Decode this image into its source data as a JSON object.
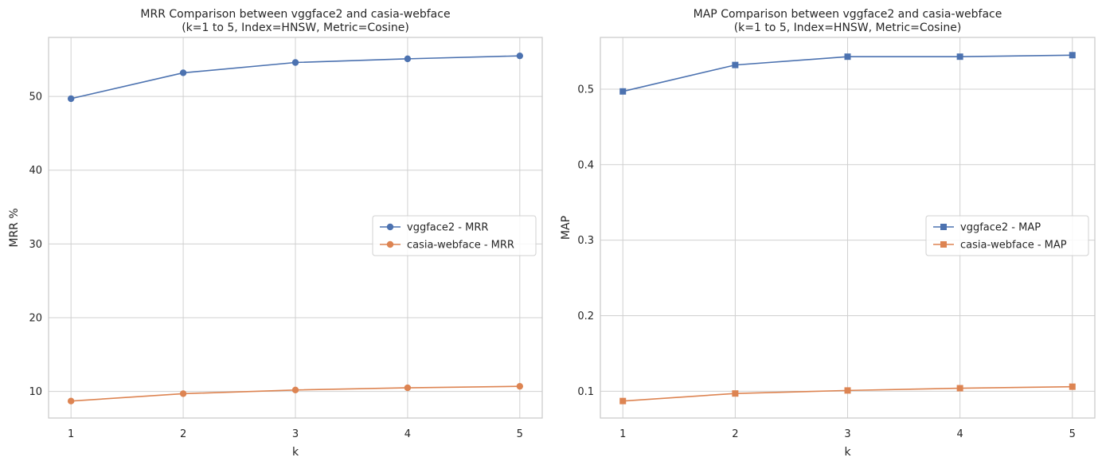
{
  "chart_data": [
    {
      "type": "line",
      "title": "MRR Comparison between vggface2 and casia-webface\n(k=1 to 5, Index=HNSW, Metric=Cosine)",
      "xlabel": "k",
      "ylabel": "MRR %",
      "x": [
        1,
        2,
        3,
        4,
        5
      ],
      "xlim": [
        0.8,
        5.2
      ],
      "ylim": [
        6.4,
        58.0
      ],
      "yticks": [
        10,
        20,
        30,
        40,
        50
      ],
      "ytick_labels": [
        "10",
        "20",
        "30",
        "40",
        "50"
      ],
      "xtick_labels": [
        "1",
        "2",
        "3",
        "4",
        "5"
      ],
      "marker": "circle",
      "grid": true,
      "legend_position": "center-right",
      "series": [
        {
          "name": "vggface2 - MRR",
          "color": "#4c72b0",
          "values": [
            49.7,
            53.2,
            54.6,
            55.1,
            55.5
          ]
        },
        {
          "name": "casia-webface - MRR",
          "color": "#dd8452",
          "values": [
            8.7,
            9.7,
            10.2,
            10.5,
            10.7
          ]
        }
      ]
    },
    {
      "type": "line",
      "title": "MAP Comparison between vggface2 and casia-webface\n(k=1 to 5, Index=HNSW, Metric=Cosine)",
      "xlabel": "k",
      "ylabel": "MAP",
      "x": [
        1,
        2,
        3,
        4,
        5
      ],
      "xlim": [
        0.8,
        5.2
      ],
      "ylim": [
        0.0645,
        0.5685
      ],
      "yticks": [
        0.1,
        0.2,
        0.3,
        0.4,
        0.5
      ],
      "ytick_labels": [
        "0.1",
        "0.2",
        "0.3",
        "0.4",
        "0.5"
      ],
      "xtick_labels": [
        "1",
        "2",
        "3",
        "4",
        "5"
      ],
      "marker": "square",
      "grid": true,
      "legend_position": "center-right",
      "series": [
        {
          "name": "vggface2 - MAP",
          "color": "#4c72b0",
          "values": [
            0.497,
            0.532,
            0.543,
            0.543,
            0.545
          ]
        },
        {
          "name": "casia-webface - MAP",
          "color": "#dd8452",
          "values": [
            0.087,
            0.097,
            0.101,
            0.104,
            0.106
          ]
        }
      ]
    }
  ]
}
